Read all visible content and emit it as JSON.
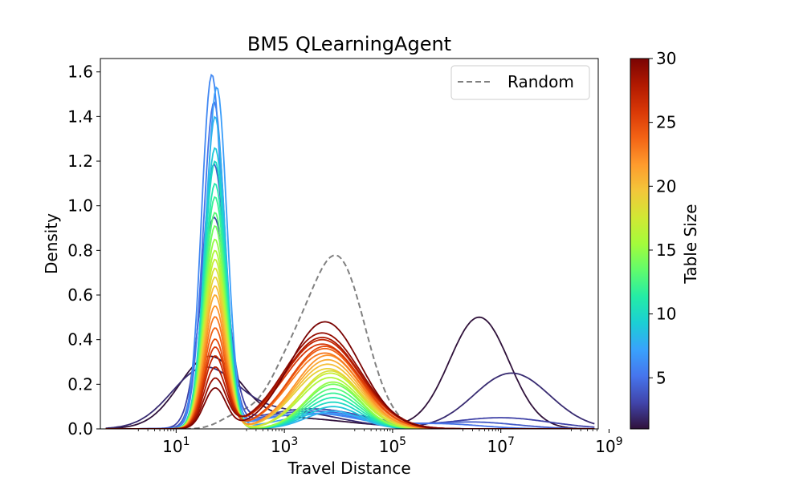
{
  "chart_data": {
    "type": "line",
    "title": "BM5 QLearningAgent",
    "xlabel": "Travel Distance",
    "ylabel": "Density",
    "xscale": "log",
    "xlim_log10": [
      -0.4,
      8.8
    ],
    "ylim": [
      0,
      1.66
    ],
    "x_ticks": [
      {
        "log10": 1,
        "base": "10",
        "exp": "1"
      },
      {
        "log10": 3,
        "base": "10",
        "exp": "3"
      },
      {
        "log10": 5,
        "base": "10",
        "exp": "5"
      },
      {
        "log10": 7,
        "base": "10",
        "exp": "7"
      },
      {
        "log10": 9,
        "base": "10",
        "exp": "9"
      }
    ],
    "y_ticks": [
      {
        "v": 0.0,
        "label": "0.0"
      },
      {
        "v": 0.2,
        "label": "0.2"
      },
      {
        "v": 0.4,
        "label": "0.4"
      },
      {
        "v": 0.6,
        "label": "0.6"
      },
      {
        "v": 0.8,
        "label": "0.8"
      },
      {
        "v": 1.0,
        "label": "1.0"
      },
      {
        "v": 1.2,
        "label": "1.2"
      },
      {
        "v": 1.4,
        "label": "1.4"
      },
      {
        "v": 1.6,
        "label": "1.6"
      }
    ],
    "grid": false,
    "legend": {
      "position": "top-right",
      "entries": [
        {
          "name": "Random",
          "style": "dashed",
          "color": "#808080"
        }
      ]
    },
    "colorbar": {
      "label": "Table Size",
      "range": [
        1,
        30
      ],
      "ticks": [
        {
          "v": 5,
          "label": "5"
        },
        {
          "v": 10,
          "label": "10"
        },
        {
          "v": 15,
          "label": "15"
        },
        {
          "v": 20,
          "label": "20"
        },
        {
          "v": 25,
          "label": "25"
        },
        {
          "v": 30,
          "label": "30"
        }
      ],
      "colormap": [
        "#30123b",
        "#4145ab",
        "#4675ed",
        "#39a2fc",
        "#1bcfd4",
        "#24eca6",
        "#61fc6c",
        "#a4fc3b",
        "#d1e834",
        "#f3c63a",
        "#fe9b2d",
        "#f36315",
        "#d93806",
        "#b11901",
        "#7a0403"
      ]
    },
    "random_series": {
      "name": "Random",
      "color": "#808080",
      "components": [
        {
          "mu": 4.0,
          "sigma": 0.5,
          "amp": 0.74
        },
        {
          "mu": 3.1,
          "sigma": 0.45,
          "amp": 0.25
        },
        {
          "mu": 2.1,
          "sigma": 0.3,
          "amp": 0.05
        }
      ]
    },
    "series": [
      {
        "table_size": 1,
        "components": [
          {
            "mu": 1.6,
            "sigma": 0.55,
            "amp": 0.3
          },
          {
            "mu": 6.6,
            "sigma": 0.55,
            "amp": 0.5
          },
          {
            "mu": 3.0,
            "sigma": 1.2,
            "amp": 0.05
          }
        ]
      },
      {
        "table_size": 2,
        "components": [
          {
            "mu": 1.5,
            "sigma": 0.6,
            "amp": 0.25
          },
          {
            "mu": 7.2,
            "sigma": 0.7,
            "amp": 0.25
          },
          {
            "mu": 3.0,
            "sigma": 1.0,
            "amp": 0.08
          }
        ]
      },
      {
        "table_size": 3,
        "components": [
          {
            "mu": 1.7,
            "sigma": 0.25,
            "amp": 0.93
          },
          {
            "mu": 3.5,
            "sigma": 1.0,
            "amp": 0.09
          },
          {
            "mu": 7.0,
            "sigma": 0.9,
            "amp": 0.05
          }
        ]
      },
      {
        "table_size": 4,
        "components": [
          {
            "mu": 1.7,
            "sigma": 0.22,
            "amp": 1.17
          },
          {
            "mu": 3.5,
            "sigma": 1.0,
            "amp": 0.08
          },
          {
            "mu": 6.5,
            "sigma": 0.8,
            "amp": 0.03
          }
        ]
      },
      {
        "table_size": 5,
        "components": [
          {
            "mu": 1.7,
            "sigma": 0.2,
            "amp": 1.45
          },
          {
            "mu": 3.5,
            "sigma": 1.0,
            "amp": 0.07
          },
          {
            "mu": 6.0,
            "sigma": 0.7,
            "amp": 0.02
          }
        ]
      },
      {
        "table_size": 6,
        "components": [
          {
            "mu": 1.66,
            "sigma": 0.19,
            "amp": 1.58
          },
          {
            "mu": 3.5,
            "sigma": 0.9,
            "amp": 0.07
          }
        ]
      },
      {
        "table_size": 7,
        "components": [
          {
            "mu": 1.75,
            "sigma": 0.19,
            "amp": 1.53
          },
          {
            "mu": 3.8,
            "sigma": 0.8,
            "amp": 0.07
          }
        ]
      },
      {
        "table_size": 8,
        "components": [
          {
            "mu": 1.72,
            "sigma": 0.19,
            "amp": 1.4
          },
          {
            "mu": 3.9,
            "sigma": 0.5,
            "amp": 0.08
          }
        ]
      },
      {
        "table_size": 9,
        "components": [
          {
            "mu": 1.72,
            "sigma": 0.2,
            "amp": 1.26
          },
          {
            "mu": 3.9,
            "sigma": 0.5,
            "amp": 0.1
          }
        ]
      },
      {
        "table_size": 10,
        "components": [
          {
            "mu": 1.72,
            "sigma": 0.2,
            "amp": 1.2
          },
          {
            "mu": 3.9,
            "sigma": 0.5,
            "amp": 0.12
          }
        ]
      },
      {
        "table_size": 11,
        "components": [
          {
            "mu": 1.72,
            "sigma": 0.2,
            "amp": 1.1
          },
          {
            "mu": 3.9,
            "sigma": 0.5,
            "amp": 0.14
          }
        ]
      },
      {
        "table_size": 12,
        "components": [
          {
            "mu": 1.72,
            "sigma": 0.2,
            "amp": 1.04
          },
          {
            "mu": 3.9,
            "sigma": 0.5,
            "amp": 0.16
          }
        ]
      },
      {
        "table_size": 13,
        "components": [
          {
            "mu": 1.72,
            "sigma": 0.2,
            "amp": 0.97
          },
          {
            "mu": 3.9,
            "sigma": 0.5,
            "amp": 0.18
          }
        ]
      },
      {
        "table_size": 14,
        "components": [
          {
            "mu": 1.72,
            "sigma": 0.2,
            "amp": 0.91
          },
          {
            "mu": 3.9,
            "sigma": 0.5,
            "amp": 0.2
          }
        ]
      },
      {
        "table_size": 15,
        "components": [
          {
            "mu": 1.72,
            "sigma": 0.2,
            "amp": 0.85
          },
          {
            "mu": 3.9,
            "sigma": 0.5,
            "amp": 0.21
          }
        ]
      },
      {
        "table_size": 16,
        "components": [
          {
            "mu": 1.72,
            "sigma": 0.2,
            "amp": 0.8
          },
          {
            "mu": 3.85,
            "sigma": 0.55,
            "amp": 0.23
          }
        ]
      },
      {
        "table_size": 17,
        "components": [
          {
            "mu": 1.72,
            "sigma": 0.2,
            "amp": 0.76
          },
          {
            "mu": 3.85,
            "sigma": 0.55,
            "amp": 0.25
          }
        ]
      },
      {
        "table_size": 18,
        "components": [
          {
            "mu": 1.72,
            "sigma": 0.2,
            "amp": 0.72
          },
          {
            "mu": 3.85,
            "sigma": 0.55,
            "amp": 0.26
          }
        ]
      },
      {
        "table_size": 19,
        "components": [
          {
            "mu": 1.72,
            "sigma": 0.2,
            "amp": 0.68
          },
          {
            "mu": 3.8,
            "sigma": 0.6,
            "amp": 0.27
          }
        ]
      },
      {
        "table_size": 20,
        "components": [
          {
            "mu": 1.72,
            "sigma": 0.2,
            "amp": 0.64
          },
          {
            "mu": 3.8,
            "sigma": 0.6,
            "amp": 0.29
          }
        ]
      },
      {
        "table_size": 21,
        "components": [
          {
            "mu": 1.72,
            "sigma": 0.2,
            "amp": 0.6
          },
          {
            "mu": 3.8,
            "sigma": 0.6,
            "amp": 0.31
          }
        ]
      },
      {
        "table_size": 22,
        "components": [
          {
            "mu": 1.72,
            "sigma": 0.2,
            "amp": 0.55
          },
          {
            "mu": 3.8,
            "sigma": 0.6,
            "amp": 0.33
          }
        ]
      },
      {
        "table_size": 23,
        "components": [
          {
            "mu": 1.72,
            "sigma": 0.2,
            "amp": 0.5
          },
          {
            "mu": 3.75,
            "sigma": 0.65,
            "amp": 0.34
          }
        ]
      },
      {
        "table_size": 24,
        "components": [
          {
            "mu": 1.72,
            "sigma": 0.2,
            "amp": 0.45
          },
          {
            "mu": 3.75,
            "sigma": 0.65,
            "amp": 0.36
          }
        ]
      },
      {
        "table_size": 25,
        "components": [
          {
            "mu": 1.72,
            "sigma": 0.2,
            "amp": 0.4
          },
          {
            "mu": 3.75,
            "sigma": 0.65,
            "amp": 0.37
          }
        ]
      },
      {
        "table_size": 26,
        "components": [
          {
            "mu": 1.72,
            "sigma": 0.2,
            "amp": 0.36
          },
          {
            "mu": 3.7,
            "sigma": 0.7,
            "amp": 0.38
          }
        ]
      },
      {
        "table_size": 27,
        "components": [
          {
            "mu": 1.72,
            "sigma": 0.2,
            "amp": 0.32
          },
          {
            "mu": 3.7,
            "sigma": 0.7,
            "amp": 0.4
          }
        ]
      },
      {
        "table_size": 28,
        "components": [
          {
            "mu": 1.72,
            "sigma": 0.2,
            "amp": 0.27
          },
          {
            "mu": 3.7,
            "sigma": 0.7,
            "amp": 0.41
          }
        ]
      },
      {
        "table_size": 29,
        "components": [
          {
            "mu": 1.72,
            "sigma": 0.2,
            "amp": 0.22
          },
          {
            "mu": 3.7,
            "sigma": 0.7,
            "amp": 0.43
          }
        ]
      },
      {
        "table_size": 30,
        "components": [
          {
            "mu": 1.72,
            "sigma": 0.2,
            "amp": 0.18
          },
          {
            "mu": 3.75,
            "sigma": 0.65,
            "amp": 0.48
          }
        ]
      }
    ]
  }
}
